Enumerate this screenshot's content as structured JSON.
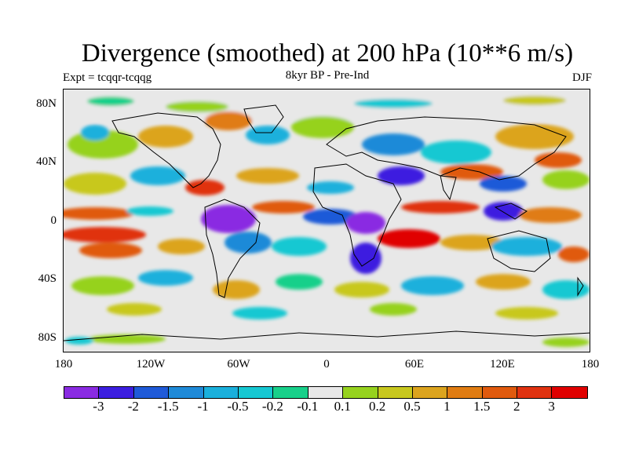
{
  "title": "Divergence (smoothed) at 200 hPa (10**6 m/s)",
  "subtitle_left": "Expt = tcqqr-tcqqg",
  "subtitle_center": "8kyr BP - Pre-Ind",
  "subtitle_right": "DJF",
  "y_ticks": [
    "80N",
    "40N",
    "0",
    "40S",
    "80S"
  ],
  "x_ticks": [
    "180",
    "120W",
    "60W",
    "0",
    "60E",
    "120E",
    "180"
  ],
  "colorbar": {
    "labels": [
      "-3",
      "-2",
      "-1.5",
      "-1",
      "-0.5",
      "-0.2",
      "-0.1",
      "0.1",
      "0.2",
      "0.5",
      "1",
      "1.5",
      "2",
      "3"
    ],
    "colors": [
      "#8a2be2",
      "#3c1ee0",
      "#1f5ad8",
      "#1f8ad8",
      "#1ab0dc",
      "#16c8d2",
      "#18d08a",
      "#e8e8e8",
      "#96d21e",
      "#c8c81e",
      "#dca41e",
      "#e07c12",
      "#e05a0e",
      "#e03210",
      "#e00000"
    ]
  }
}
